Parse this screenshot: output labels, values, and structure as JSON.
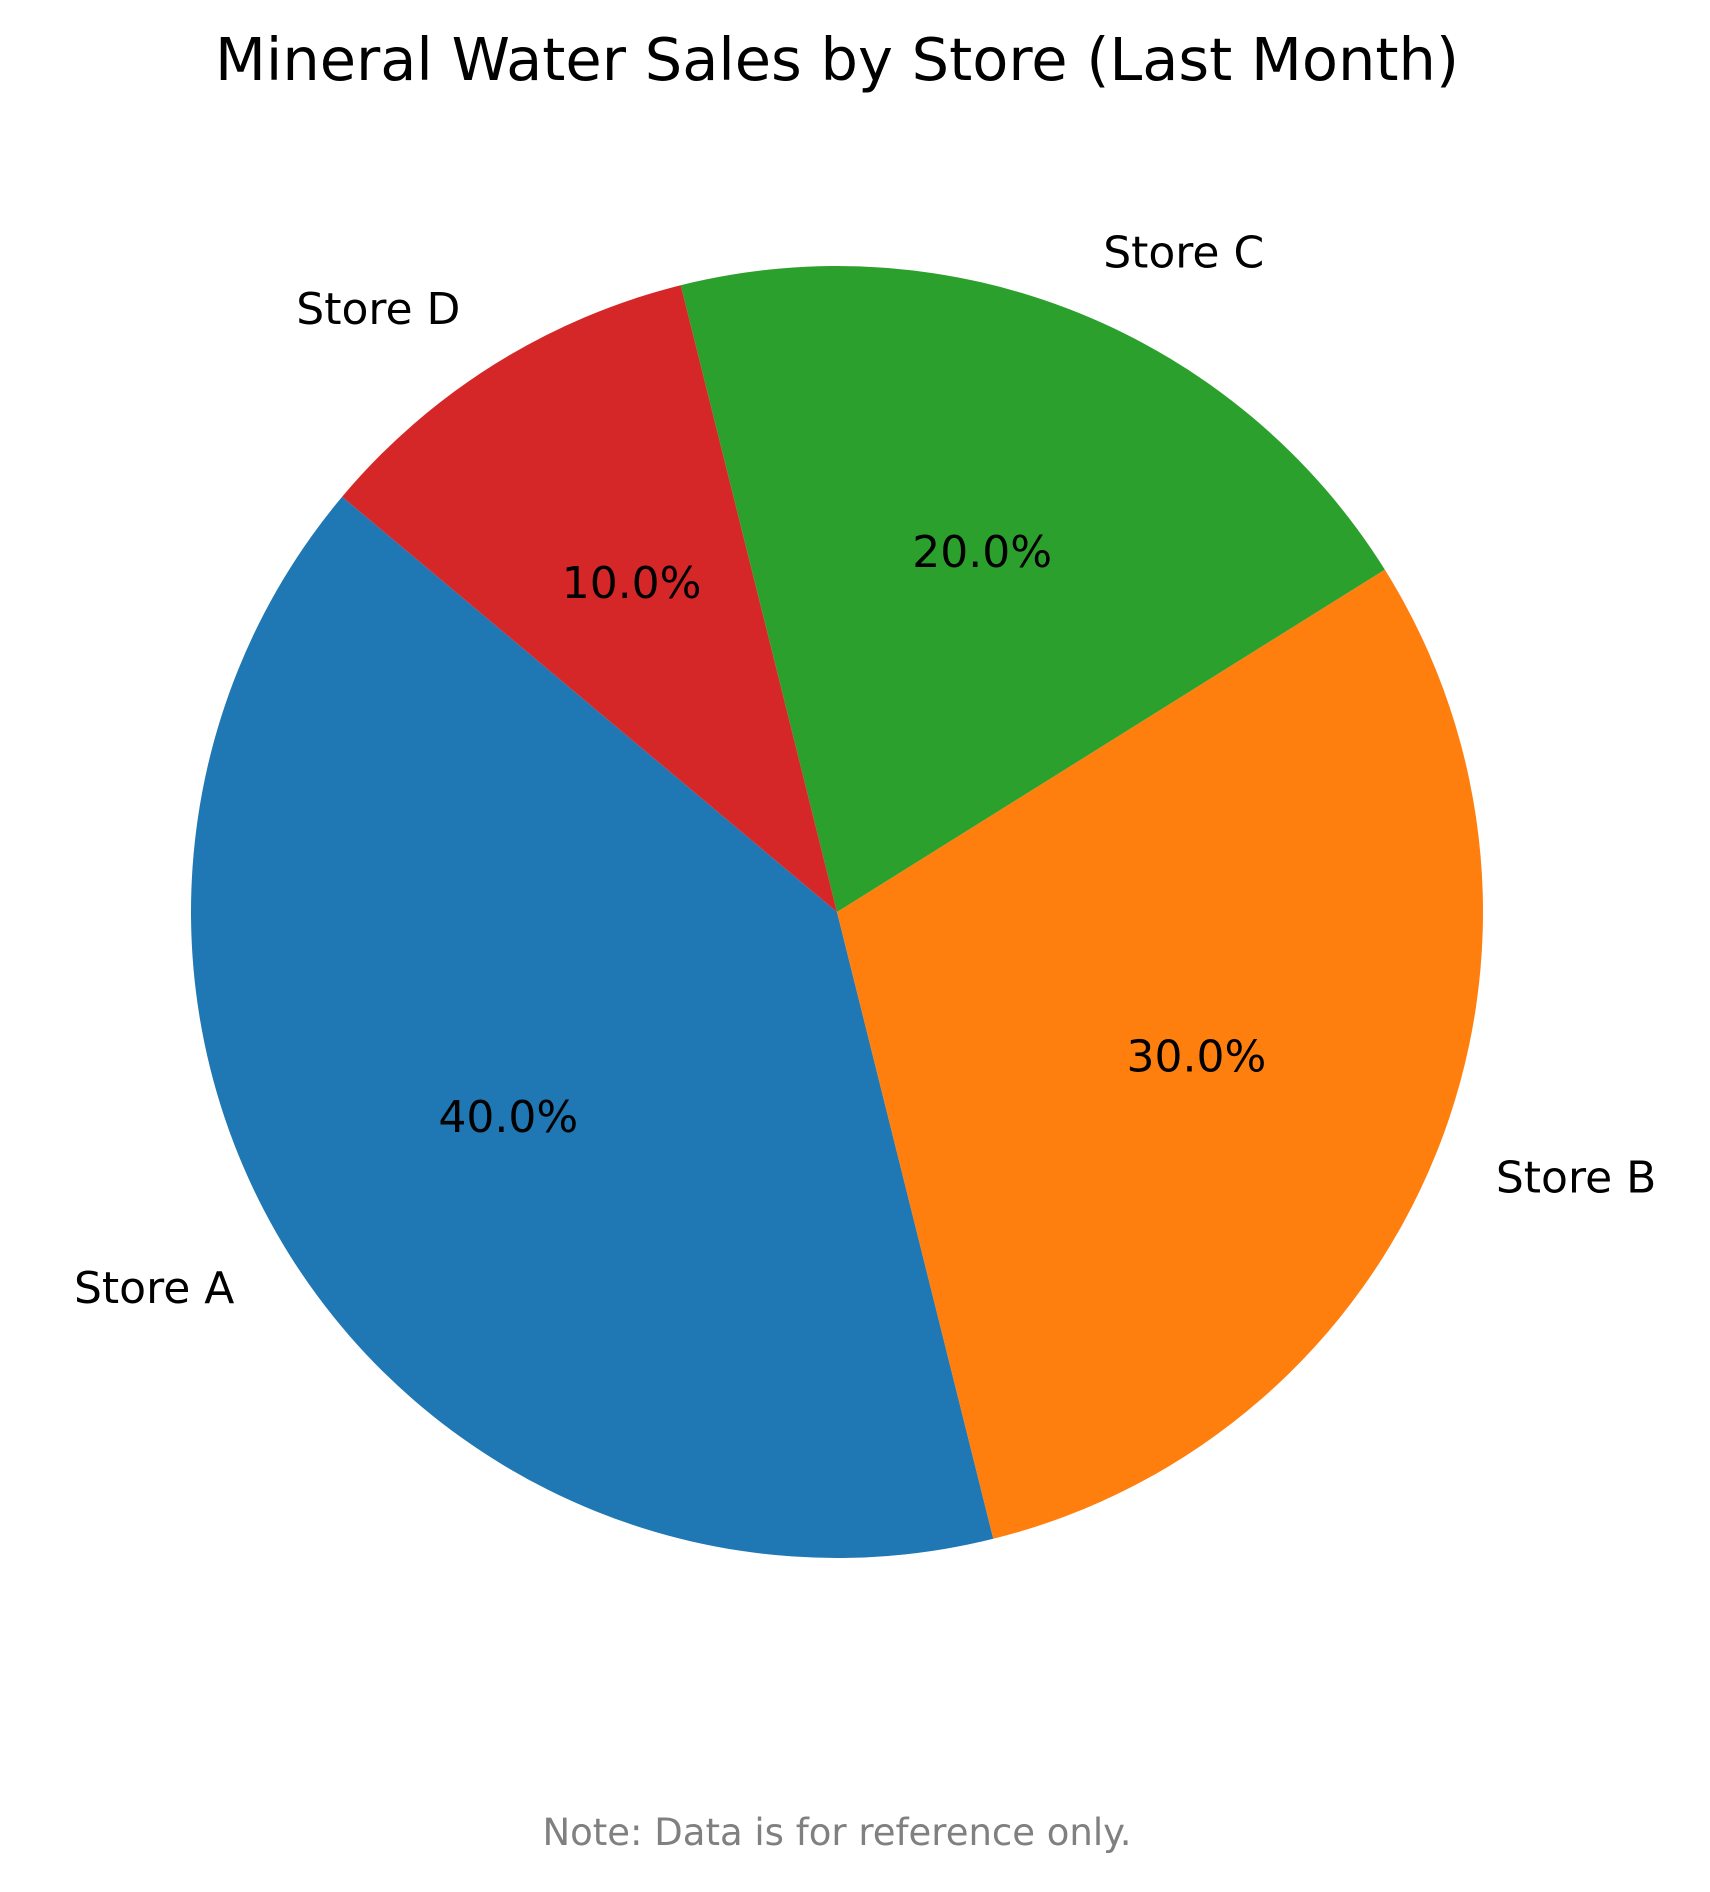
{
  "chart_data": {
    "type": "pie",
    "title": "Mineral Water Sales by Store (Last Month)",
    "categories": [
      "Store A",
      "Store B",
      "Store C",
      "Store D"
    ],
    "values": [
      40.0,
      30.0,
      20.0,
      10.0
    ],
    "percent_labels": [
      "40.0%",
      "30.0%",
      "20.0%",
      "10.0%"
    ],
    "colors": [
      "#1f77b4",
      "#ff7f0e",
      "#2ca02c",
      "#d62728"
    ],
    "start_angle_deg": 140,
    "direction": "counterclockwise",
    "note": "Note: Data is for reference only."
  }
}
